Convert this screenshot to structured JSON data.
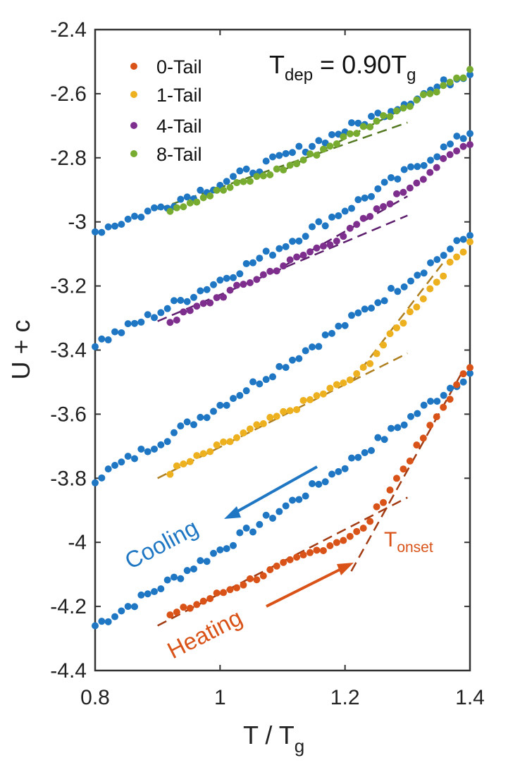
{
  "chart_data": {
    "type": "scatter",
    "title_main": "T",
    "title_sub": "dep",
    "title_mid": " = 0.90T",
    "title_sub2": "g",
    "xlabel_main": "T  / T",
    "xlabel_sub": "g",
    "ylabel": "U + c",
    "xlim": [
      0.8,
      1.4
    ],
    "ylim": [
      -4.4,
      -2.4
    ],
    "xticks": [
      0.8,
      1,
      1.2,
      1.4
    ],
    "xtick_labels": [
      "0.8",
      "1",
      "1.2",
      "1.4"
    ],
    "yticks": [
      -2.4,
      -2.6,
      -2.8,
      -3,
      -3.2,
      -3.4,
      -3.6,
      -3.8,
      -4,
      -4.2,
      -4.4
    ],
    "ytick_labels": [
      "-2.4",
      "-2.6",
      "-2.8",
      "-3",
      "-3.2",
      "-3.4",
      "-3.6",
      "-3.8",
      "-4",
      "-4.2",
      "-4.4"
    ],
    "legend_position": "top-left",
    "cooling_color": "#1f77c4",
    "series": [
      {
        "name": "0-Tail",
        "color": "#d95319",
        "heating": {
          "x_start": 0.92,
          "x_end": 1.4,
          "y_start": -4.23,
          "y_onset": -3.96,
          "x_onset": 1.23,
          "y_end": -3.45
        },
        "cooling": {
          "x_start": 0.8,
          "x_end": 1.4,
          "y_start": -4.26,
          "y_end": -3.47
        },
        "fit_low": {
          "x": [
            0.9,
            1.3
          ],
          "y": [
            -4.26,
            -3.86
          ]
        },
        "fit_high": {
          "x": [
            1.21,
            1.39
          ],
          "y": [
            -4.09,
            -3.46
          ]
        },
        "fit_color": "#a23a12"
      },
      {
        "name": "1-Tail",
        "color": "#edb120",
        "heating": {
          "x_start": 0.92,
          "x_end": 1.4,
          "y_start": -3.78,
          "y_onset": -3.48,
          "x_onset": 1.22,
          "y_end": -3.06
        },
        "cooling": {
          "x_start": 0.8,
          "x_end": 1.4,
          "y_start": -3.8,
          "y_end": -3.04
        },
        "fit_low": {
          "x": [
            0.9,
            1.3
          ],
          "y": [
            -3.8,
            -3.41
          ]
        },
        "fit_high": {
          "x": [
            1.21,
            1.36
          ],
          "y": [
            -3.5,
            -3.12
          ]
        },
        "fit_color": "#b08020"
      },
      {
        "name": "4-Tail",
        "color": "#7e2f8e",
        "heating": {
          "x_start": 0.92,
          "x_end": 1.4,
          "y_start": -3.31,
          "y_onset": -3.04,
          "x_onset": 1.2,
          "y_end": -2.75
        },
        "cooling": {
          "x_start": 0.8,
          "x_end": 1.4,
          "y_start": -3.38,
          "y_end": -2.72
        },
        "fit_low": {
          "x": [
            0.9,
            1.3
          ],
          "y": [
            -3.31,
            -2.98
          ]
        },
        "fit_high": {
          "x": [
            1.1,
            1.3
          ],
          "y": [
            -3.14,
            -2.92
          ]
        },
        "fit_color": "#5e1f6e"
      },
      {
        "name": "8-Tail",
        "color": "#77ac30",
        "heating": {
          "x_start": 0.92,
          "x_end": 1.4,
          "y_start": -2.96,
          "y_onset": -2.82,
          "x_onset": 1.12,
          "y_end": -2.53
        },
        "cooling": {
          "x_start": 0.8,
          "x_end": 1.4,
          "y_start": -3.03,
          "y_end": -2.53
        },
        "fit_low": {
          "x": [
            0.9,
            1.3
          ],
          "y": [
            -2.96,
            -2.69
          ]
        },
        "fit_high": {
          "x": [
            1.1,
            1.28
          ],
          "y": [
            -2.84,
            -2.66
          ]
        },
        "fit_color": "#557a22"
      }
    ],
    "annotations": {
      "cooling_label": "Cooling",
      "heating_label": "Heating",
      "onset_main": "T",
      "onset_sub": "onset",
      "heating_arrow_color": "#d95319",
      "onset_color": "#d95319"
    }
  }
}
